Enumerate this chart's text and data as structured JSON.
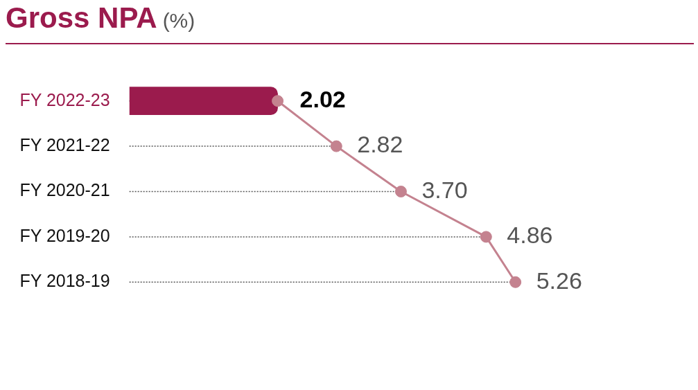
{
  "chart_data": {
    "type": "lollipop",
    "orientation": "horizontal",
    "title": "Gross NPA",
    "subtitle": "(%)",
    "categories": [
      "FY 2022-23",
      "FY 2021-22",
      "FY 2020-21",
      "FY 2019-20",
      "FY 2018-19"
    ],
    "series": [
      {
        "type": "bar",
        "color": "#9b1b4d",
        "values": [
          2.02,
          null,
          null,
          null,
          null
        ]
      },
      {
        "color": "#c4828f",
        "line_style": "dotted",
        "marker": "circle",
        "values": [
          2.02,
          2.82,
          3.7,
          4.86,
          5.26
        ],
        "value_labels": [
          "2.02",
          "2.82",
          "3.70",
          "4.86",
          "5.26"
        ]
      },
      {
        "type": "line",
        "color": "#c4828f",
        "values": [
          2.02,
          2.82,
          3.7,
          4.86,
          5.26
        ]
      }
    ],
    "grid": false,
    "legend": false
  }
}
